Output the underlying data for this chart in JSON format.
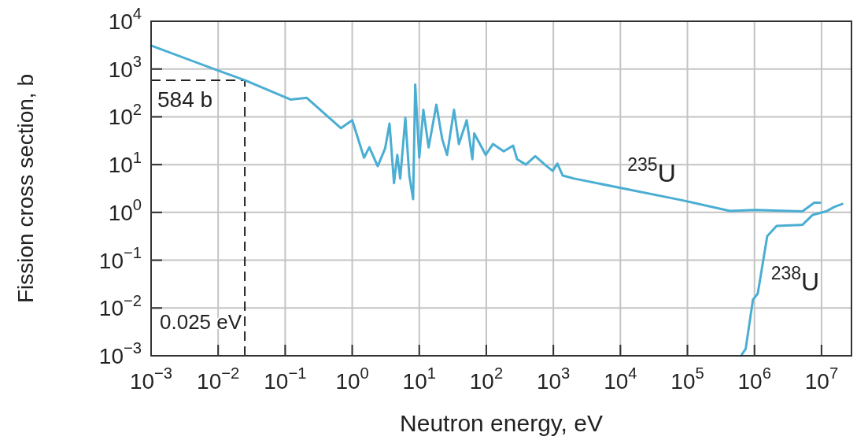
{
  "chart_data": {
    "type": "line",
    "xlabel": "Neutron energy, eV",
    "ylabel": "Fission cross section, b",
    "log": "xy",
    "grid": true,
    "marker": "none",
    "line_style": "solid",
    "xlim": [
      0.001,
      28000000
    ],
    "ylim": [
      0.001,
      10000
    ],
    "xticks": [
      {
        "value": 0.001,
        "label": "10$^{−3}$"
      },
      {
        "value": 0.01,
        "label": "10$^{−2}$"
      },
      {
        "value": 0.1,
        "label": "10$^{−1}$"
      },
      {
        "value": 1,
        "label": "10$^{0}$"
      },
      {
        "value": 10,
        "label": "10$^{1}$"
      },
      {
        "value": 100,
        "label": "10$^{2}$"
      },
      {
        "value": 1000,
        "label": "10$^{3}$"
      },
      {
        "value": 10000,
        "label": "10$^{4}$"
      },
      {
        "value": 100000,
        "label": "10$^{5}$"
      },
      {
        "value": 1000000,
        "label": "10$^{6}$"
      },
      {
        "value": 10000000,
        "label": "10$^{7}$"
      }
    ],
    "yticks": [
      {
        "value": 0.001,
        "label": "10$^{−3}$"
      },
      {
        "value": 0.01,
        "label": "10$^{−2}$"
      },
      {
        "value": 0.1,
        "label": "10$^{−1}$"
      },
      {
        "value": 1,
        "label": "10$^{0}$"
      },
      {
        "value": 10,
        "label": "10$^{1}$"
      },
      {
        "value": 100,
        "label": "10$^{2}$"
      },
      {
        "value": 1000,
        "label": "10$^{3}$"
      },
      {
        "value": 10000,
        "label": "10$^{4}$"
      }
    ],
    "ref_lines": [
      {
        "axis": "x",
        "value": 0.025,
        "label": "0.025 eV",
        "line_style": "dashed",
        "color": "#222222"
      },
      {
        "axis": "y",
        "value": 584,
        "label": "584 b",
        "line_style": "dashed",
        "color": "#222222"
      }
    ],
    "series": [
      {
        "name": "$^{235}$U",
        "color": "#4aaed3",
        "x": [
          0.001,
          0.01,
          0.025,
          0.12,
          0.21,
          0.68,
          1.0,
          1.5,
          1.8,
          2.4,
          3.1,
          3.6,
          4.2,
          4.7,
          5.2,
          6.2,
          7.1,
          8.1,
          8.7,
          10,
          11.5,
          13.8,
          18,
          22,
          26,
          33,
          39,
          51,
          62,
          66,
          98,
          126,
          182,
          251,
          288,
          389,
          537,
          759,
          977,
          1150,
          1380,
          2040,
          83000,
          430000,
          1020000,
          5200000,
          7800000,
          9500000
        ],
        "values": [
          3100,
          930,
          584,
          230,
          250,
          58,
          85,
          14,
          23,
          9.3,
          22,
          72,
          4.1,
          16,
          5.1,
          95,
          5.9,
          1.9,
          470,
          14,
          140,
          23,
          180,
          34,
          16,
          140,
          27,
          85,
          13,
          45,
          16,
          27,
          19,
          25,
          13,
          10,
          15,
          9.8,
          7.4,
          10.5,
          5.9,
          5.1,
          1.8,
          1.07,
          1.12,
          1.05,
          1.6,
          1.6
        ]
      },
      {
        "name": "$^{238}$U",
        "color": "#4aaed3",
        "x": [
          630000,
          740000,
          950000,
          1120000,
          1550000,
          2140000,
          5200000,
          7400000,
          11700000,
          15500000,
          20400000
        ],
        "values": [
          0.001,
          0.0014,
          0.015,
          0.02,
          0.32,
          0.52,
          0.55,
          0.89,
          1.05,
          1.3,
          1.5
        ]
      }
    ]
  }
}
